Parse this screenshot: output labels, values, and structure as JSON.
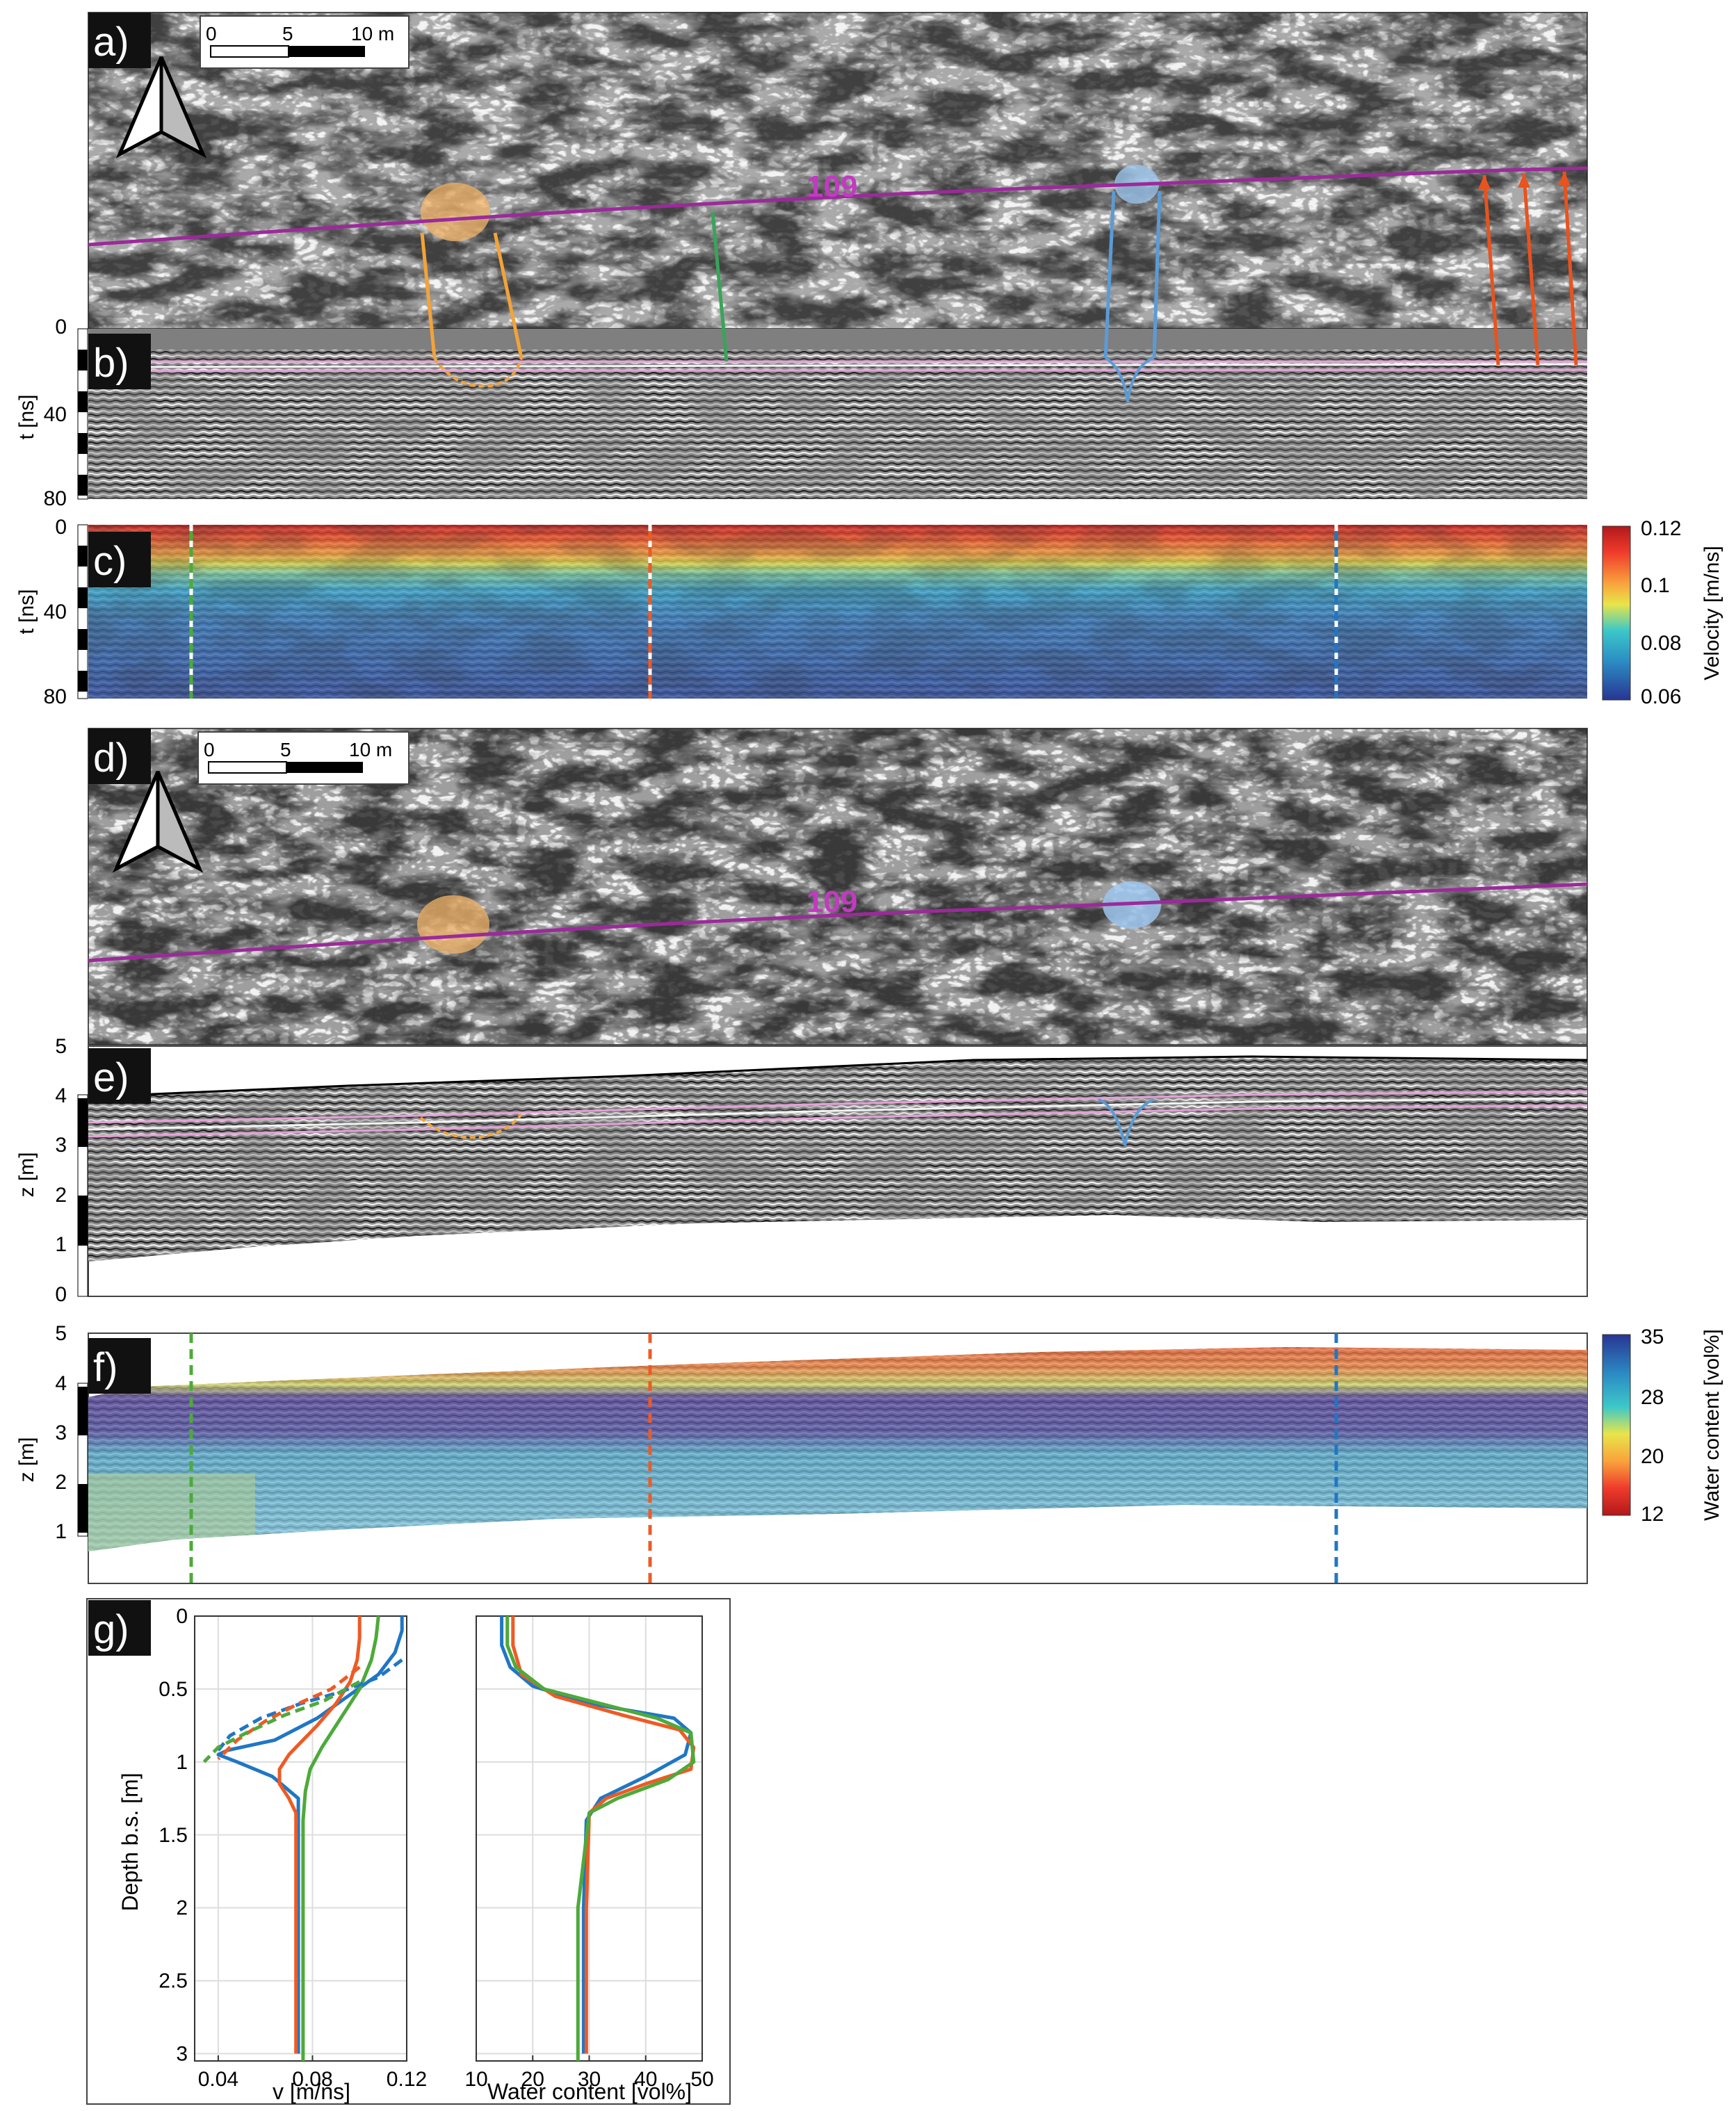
{
  "panels": {
    "a": {
      "label": "a)"
    },
    "b": {
      "label": "b)"
    },
    "c": {
      "label": "c)"
    },
    "d": {
      "label": "d)"
    },
    "e": {
      "label": "e)"
    },
    "f": {
      "label": "f)"
    },
    "g": {
      "label": "g)"
    }
  },
  "scalebar": {
    "t0": "0",
    "t1": "5",
    "t2": "10 m"
  },
  "profile_label": "109",
  "axes": {
    "b_ylabel": "t [ns]",
    "b_ticks": [
      "0",
      "40",
      "80"
    ],
    "c_ylabel": "t [ns]",
    "c_ticks": [
      "0",
      "40",
      "80"
    ],
    "e_ylabel": "z [m]",
    "e_ticks": [
      "0",
      "1",
      "2",
      "3",
      "4",
      "5"
    ],
    "f_ylabel": "z [m]",
    "f_ticks": [
      "1",
      "2",
      "3",
      "4",
      "5"
    ]
  },
  "colorbars": {
    "velocity": {
      "title": "Velocity [m/ns]",
      "ticks": [
        "0.12",
        "0.1",
        "0.08",
        "0.06"
      ]
    },
    "water": {
      "title": "Water content [vol%]",
      "ticks": [
        "35",
        "28",
        "20",
        "12"
      ]
    }
  },
  "colors": {
    "profile_line": "#9b2a9b",
    "orange_feature": "#f2a33a",
    "blue_feature": "#5b9bd5",
    "green_line": "#3aa35a",
    "red_arrow": "#e8531e",
    "series_blue": "#1f77c4",
    "series_orange": "#ef5a24",
    "series_green": "#4daa3a"
  },
  "chart_data": [
    {
      "type": "line",
      "ylabel": "Depth b.s. [m]",
      "xlabel": "v [m/ns]",
      "xlim": [
        0.03,
        0.12
      ],
      "ylim": [
        0,
        3.05
      ],
      "xticks": [
        0.04,
        0.08,
        0.12
      ],
      "yticks": [
        0,
        0.5,
        1,
        1.5,
        2,
        2.5,
        3
      ],
      "xtick_labels": [
        "0.04",
        "0.08",
        "0.12"
      ],
      "ytick_labels": [
        "0",
        "0.5",
        "1",
        "1.5",
        "2",
        "2.5",
        "3"
      ],
      "series": [
        {
          "color": "blue",
          "style": "solid",
          "x": [
            0.118,
            0.118,
            0.115,
            0.108,
            0.095,
            0.082,
            0.064,
            0.044,
            0.04,
            0.048,
            0.063,
            0.074,
            0.074,
            0.074
          ],
          "y": [
            0,
            0.1,
            0.25,
            0.4,
            0.55,
            0.7,
            0.85,
            0.92,
            0.95,
            1.0,
            1.1,
            1.25,
            1.5,
            3.0
          ]
        },
        {
          "color": "orange",
          "style": "solid",
          "x": [
            0.1,
            0.1,
            0.099,
            0.096,
            0.09,
            0.082,
            0.07,
            0.066,
            0.066,
            0.07,
            0.073,
            0.073,
            0.073
          ],
          "y": [
            0,
            0.15,
            0.3,
            0.45,
            0.6,
            0.75,
            0.95,
            1.05,
            1.15,
            1.25,
            1.35,
            2.0,
            3.0
          ]
        },
        {
          "color": "green",
          "style": "solid",
          "x": [
            0.108,
            0.107,
            0.105,
            0.1,
            0.092,
            0.084,
            0.079,
            0.077,
            0.076,
            0.076,
            0.076
          ],
          "y": [
            0,
            0.15,
            0.3,
            0.5,
            0.7,
            0.9,
            1.05,
            1.2,
            1.4,
            2.0,
            3.05
          ]
        },
        {
          "color": "blue",
          "style": "dashed",
          "x": [
            0.118,
            0.108,
            0.092,
            0.075,
            0.058,
            0.045,
            0.04
          ],
          "y": [
            0.3,
            0.42,
            0.52,
            0.6,
            0.7,
            0.82,
            0.92
          ]
        },
        {
          "color": "orange",
          "style": "dashed",
          "x": [
            0.1,
            0.088,
            0.074,
            0.06,
            0.048,
            0.04
          ],
          "y": [
            0.35,
            0.5,
            0.6,
            0.72,
            0.85,
            0.98
          ]
        },
        {
          "color": "green",
          "style": "dashed",
          "x": [
            0.1,
            0.085,
            0.068,
            0.052,
            0.04,
            0.034
          ],
          "y": [
            0.45,
            0.58,
            0.68,
            0.8,
            0.9,
            1.0
          ]
        }
      ]
    },
    {
      "type": "line",
      "xlabel": "Water content [vol%]",
      "xlim": [
        10,
        50
      ],
      "ylim": [
        0,
        3.05
      ],
      "xticks": [
        10,
        20,
        30,
        40,
        50
      ],
      "yticks": [
        0,
        0.5,
        1,
        1.5,
        2,
        2.5,
        3
      ],
      "xtick_labels": [
        "10",
        "20",
        "30",
        "40",
        "50"
      ],
      "series": [
        {
          "color": "blue",
          "x": [
            14.5,
            14.5,
            16,
            20,
            30,
            45,
            48,
            47,
            40,
            32,
            29.5,
            29,
            29
          ],
          "y": [
            0,
            0.2,
            0.35,
            0.48,
            0.6,
            0.7,
            0.8,
            0.95,
            1.1,
            1.25,
            1.4,
            2.0,
            3.0
          ]
        },
        {
          "color": "orange",
          "x": [
            16.5,
            16.5,
            18,
            24,
            36,
            46,
            48.5,
            48,
            40,
            33,
            30,
            29.5,
            29.5
          ],
          "y": [
            0,
            0.2,
            0.4,
            0.55,
            0.68,
            0.78,
            0.9,
            1.05,
            1.15,
            1.25,
            1.35,
            2.0,
            3.0
          ]
        },
        {
          "color": "green",
          "x": [
            15.5,
            15.5,
            17,
            22,
            32,
            42,
            48,
            48.5,
            44,
            35,
            30,
            28,
            28
          ],
          "y": [
            0,
            0.2,
            0.35,
            0.5,
            0.6,
            0.7,
            0.8,
            1.0,
            1.12,
            1.25,
            1.35,
            2.0,
            3.05
          ]
        }
      ]
    }
  ]
}
